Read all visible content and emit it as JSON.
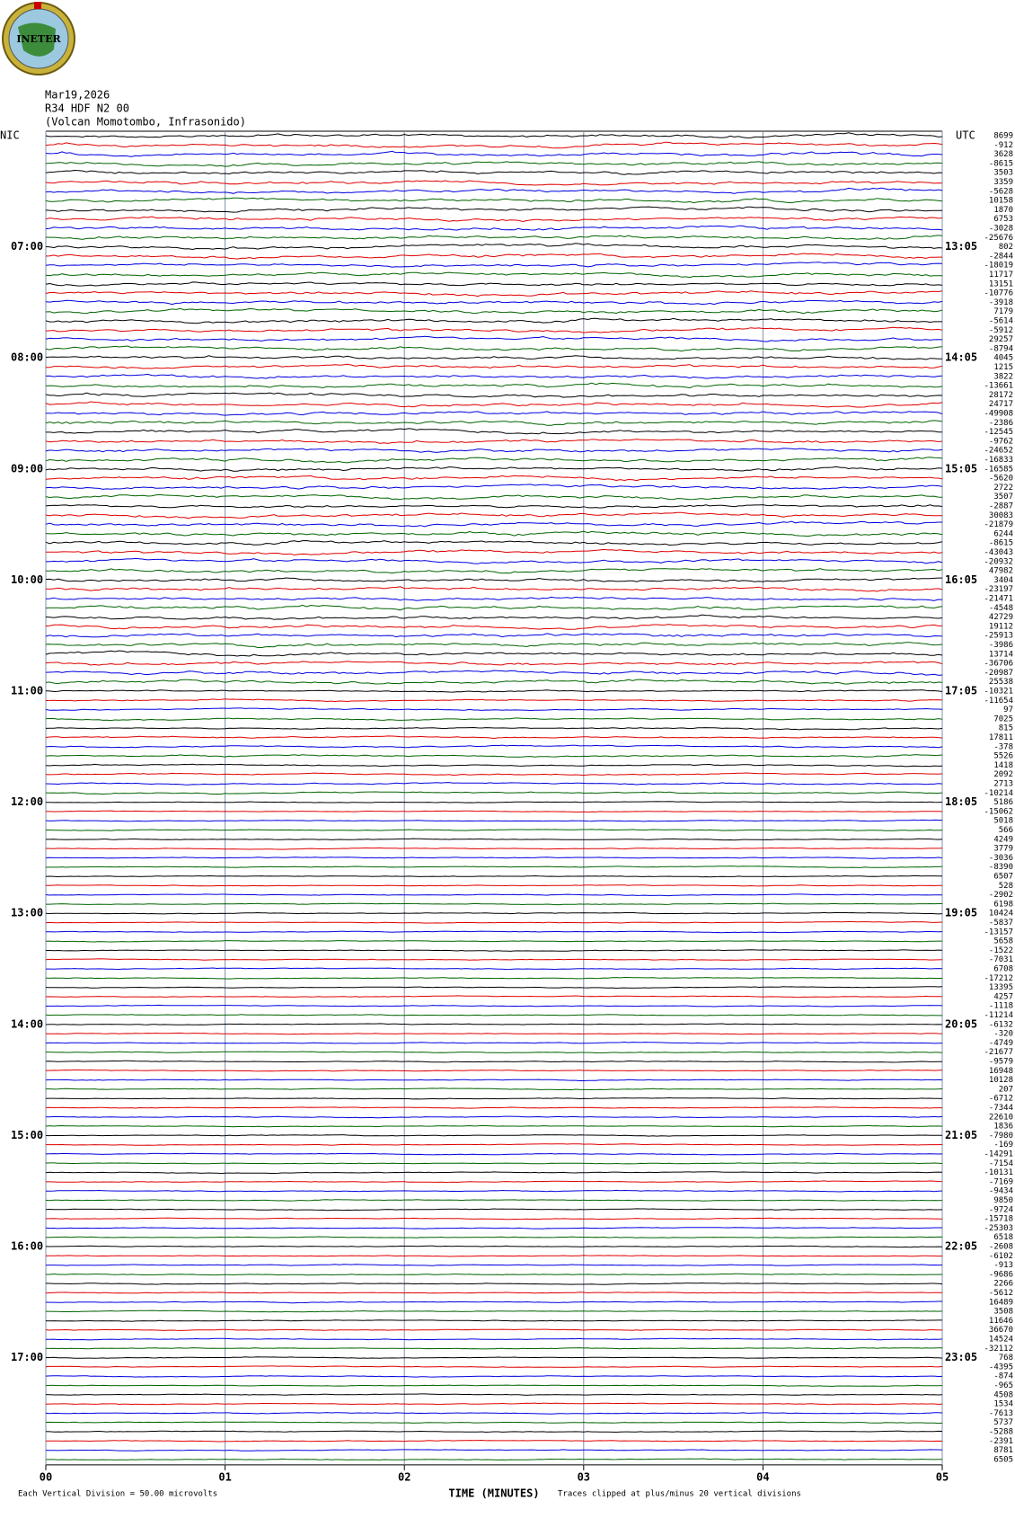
{
  "header": {
    "logo": "INETER",
    "date": "Mar19,2026",
    "station": "R34 HDF N2 00",
    "location": "(Volcan Momotombo, Infrasonido)"
  },
  "chart_data": {
    "type": "helicorder",
    "left_zone": "NIC",
    "right_zone": "UTC",
    "left_hours": [
      "07:00",
      "08:00",
      "09:00",
      "10:00",
      "11:00",
      "12:00",
      "13:00",
      "14:00",
      "15:00",
      "16:00",
      "17:00"
    ],
    "right_hours": [
      "13:05",
      "14:05",
      "15:05",
      "16:05",
      "17:05",
      "18:05",
      "19:05",
      "20:05",
      "21:05",
      "22:05",
      "23:05"
    ],
    "trace_colors": [
      "#000000",
      "#e00000",
      "#0000e0",
      "#006400"
    ],
    "offsets": [
      8699,
      -912,
      3628,
      -8615,
      3503,
      3359,
      -5628,
      10158,
      1870,
      6753,
      -3028,
      -25676,
      802,
      -2844,
      -18019,
      11717,
      13151,
      -10776,
      -3918,
      7179,
      -5614,
      -5912,
      29257,
      -8794,
      4045,
      1215,
      3822,
      -13661,
      28172,
      24717,
      -49908,
      -2386,
      -12545,
      -9762,
      -24652,
      -16833,
      -16585,
      -5620,
      2722,
      3507,
      -2887,
      30083,
      -21879,
      6244,
      -8615,
      -43043,
      -20932,
      47982,
      3404,
      -23197,
      -21471,
      -4548,
      42729,
      19112,
      -25913,
      -3986,
      13714,
      -36706,
      -20987,
      25538,
      -10321,
      -11654,
      97,
      7025,
      815,
      17811,
      -378,
      5526,
      1418,
      2092,
      2713,
      -10214,
      5186,
      -15062,
      5018,
      566,
      4249,
      3779,
      -3036,
      -8390,
      6507,
      528,
      -2902,
      6198,
      10424,
      -5837,
      -13157,
      5658,
      -1522,
      -7031,
      6708,
      -17212,
      13395,
      4257,
      -1118,
      -11214,
      -6132,
      -320,
      -4749,
      -21677,
      -9579,
      16948,
      10128,
      207,
      -6712,
      -7344,
      22610,
      1836,
      -7980,
      -169,
      -14291,
      -7154,
      -10131,
      -7169,
      -9434,
      9850,
      -9724,
      -15718,
      -25303,
      6518,
      -2608,
      -6102,
      -913,
      -9686,
      2266,
      -5612,
      16489,
      3508,
      11646,
      36670,
      14524,
      -32112,
      768,
      -4395,
      -874,
      -965,
      4508,
      1534,
      -7613,
      5737,
      -5288,
      -2391,
      8781,
      6505
    ],
    "xlim": [
      0,
      5
    ],
    "xticks": [
      {
        "value": 0,
        "label": "00"
      },
      {
        "value": 1,
        "label": "01"
      },
      {
        "value": 2,
        "label": "02"
      },
      {
        "value": 3,
        "label": "03"
      },
      {
        "value": 4,
        "label": "04"
      },
      {
        "value": 5,
        "label": "05"
      }
    ],
    "xlabel": "TIME (MINUTES)",
    "footer_left": "Each Vertical Division =    50.00 microvolts",
    "footer_right": "Traces clipped at plus/minus 20 vertical divisions"
  }
}
